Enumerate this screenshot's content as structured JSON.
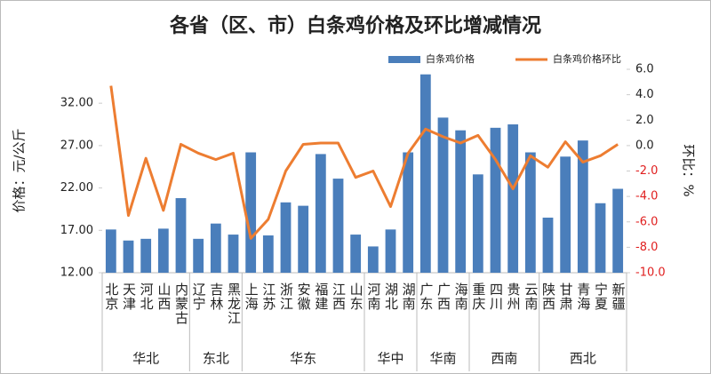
{
  "chart_data": {
    "type": "bar-line",
    "title": "各省（区、市）白条鸡价格及环比增减情况",
    "y_label": "价格：元/公斤",
    "y2_label": "环比：%",
    "groups": [
      {
        "name": "华北",
        "categories": [
          "北京",
          "天津",
          "河北",
          "山西",
          "内蒙古"
        ]
      },
      {
        "name": "东北",
        "categories": [
          "辽宁",
          "吉林",
          "黑龙江"
        ]
      },
      {
        "name": "华东",
        "categories": [
          "上海",
          "江苏",
          "浙江",
          "安徽",
          "福建",
          "江西",
          "山东"
        ]
      },
      {
        "name": "华中",
        "categories": [
          "河南",
          "湖北",
          "湖南"
        ]
      },
      {
        "name": "华南",
        "categories": [
          "广东",
          "广西",
          "海南"
        ]
      },
      {
        "name": "西南",
        "categories": [
          "重庆",
          "四川",
          "贵州",
          "云南"
        ]
      },
      {
        "name": "西北",
        "categories": [
          "陕西",
          "甘肃",
          "青海",
          "宁夏",
          "新疆"
        ]
      }
    ],
    "series": [
      {
        "name": "白条鸡价格",
        "type": "bar",
        "color": "#4a7ebb",
        "values": [
          17.1,
          15.8,
          16.0,
          17.2,
          20.8,
          16.0,
          17.8,
          16.5,
          26.2,
          16.4,
          20.3,
          19.9,
          26.0,
          23.1,
          16.5,
          15.1,
          17.1,
          26.2,
          35.4,
          30.3,
          28.8,
          23.6,
          29.1,
          29.5,
          26.2,
          18.5,
          25.7,
          27.6,
          20.2,
          21.9
        ]
      },
      {
        "name": "白条鸡价格环比",
        "type": "line",
        "axis": "y2",
        "color": "#ed7d31",
        "values": [
          4.7,
          -5.5,
          -1.0,
          -5.1,
          0.1,
          -0.6,
          -1.1,
          -0.6,
          -7.3,
          -5.8,
          -2.0,
          0.1,
          0.2,
          0.2,
          -2.5,
          -2.0,
          -4.8,
          -0.6,
          1.3,
          0.7,
          0.2,
          0.8,
          -1.1,
          -3.4,
          -0.8,
          -1.7,
          0.3,
          -1.3,
          -0.8,
          0.1
        ]
      }
    ],
    "ylim": [
      12,
      36
    ],
    "yticks": [
      {
        "value": 12,
        "label": "12.00"
      },
      {
        "value": 17,
        "label": "17.00"
      },
      {
        "value": 22,
        "label": "22.00"
      },
      {
        "value": 27,
        "label": "27.00"
      },
      {
        "value": 32,
        "label": "32.00"
      }
    ],
    "y2lim": [
      -10,
      6
    ],
    "y2ticks": [
      {
        "value": 6,
        "label": "6.0"
      },
      {
        "value": 4,
        "label": "4.0"
      },
      {
        "value": 2,
        "label": "2.0"
      },
      {
        "value": 0,
        "label": "0.0"
      },
      {
        "value": -2,
        "label": "-2.0"
      },
      {
        "value": -4,
        "label": "-4.0"
      },
      {
        "value": -6,
        "label": "-6.0"
      },
      {
        "value": -8,
        "label": "-8.0"
      },
      {
        "value": -10,
        "label": "-10.0"
      }
    ],
    "negative_tick_color": "#e02020",
    "legend": "top-right"
  }
}
